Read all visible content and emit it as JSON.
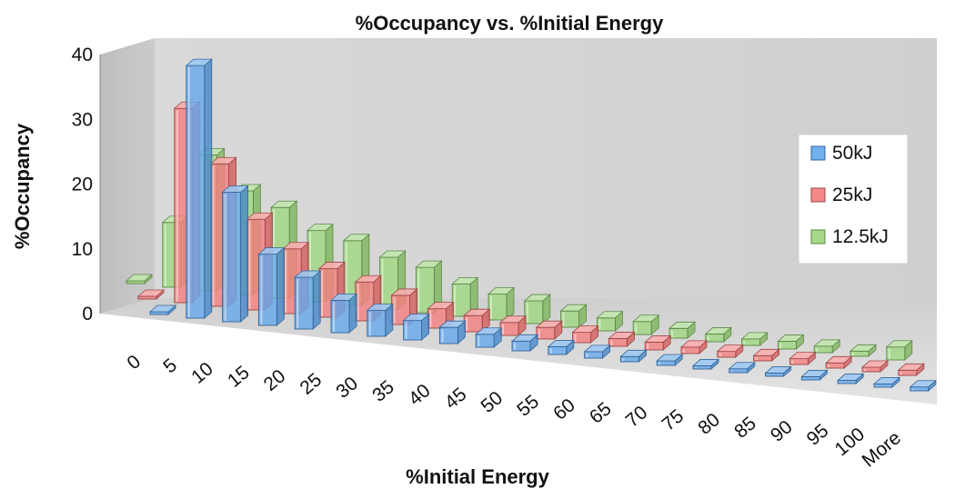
{
  "chart_data": {
    "type": "bar",
    "subtype": "3d-clustered-column",
    "title": "%Occupancy vs. %Initial Energy",
    "xlabel": "%Initial Energy",
    "ylabel": "%Occupancy",
    "ylim": [
      0,
      40
    ],
    "yticks": [
      "0",
      "10",
      "20",
      "30",
      "40"
    ],
    "categories": [
      "0",
      "5",
      "10",
      "15",
      "20",
      "25",
      "30",
      "35",
      "40",
      "45",
      "50",
      "55",
      "60",
      "65",
      "70",
      "75",
      "80",
      "85",
      "90",
      "95",
      "100",
      "More"
    ],
    "series": [
      {
        "name": "50kJ",
        "color": "#4f9be8",
        "values": [
          0.2,
          39,
          20,
          11,
          8,
          5,
          4,
          3,
          2.5,
          2,
          1.5,
          1.2,
          1,
          0.8,
          0.7,
          0.5,
          0.6,
          0.5,
          0.5,
          0.5,
          0.5,
          0.6
        ]
      },
      {
        "name": "25kJ",
        "color": "#f26b6b",
        "values": [
          0.3,
          30,
          22,
          14,
          10,
          7.5,
          6,
          4.5,
          3,
          2.5,
          2,
          1.8,
          1.6,
          1.2,
          1.2,
          1,
          0.9,
          0.8,
          0.9,
          0.8,
          0.7,
          0.8
        ]
      },
      {
        "name": "12.5kJ",
        "color": "#8fd06b",
        "values": [
          0.3,
          10,
          21,
          16,
          14,
          11,
          10,
          8,
          7,
          5,
          4,
          3.5,
          2.5,
          2,
          2,
          1.5,
          1.2,
          1,
          1.2,
          1,
          0.8,
          2
        ]
      }
    ],
    "legend": {
      "position": "right",
      "entries": [
        "50kJ",
        "25kJ",
        "12.5kJ"
      ]
    },
    "grid": false,
    "walls": "3d-gray"
  }
}
